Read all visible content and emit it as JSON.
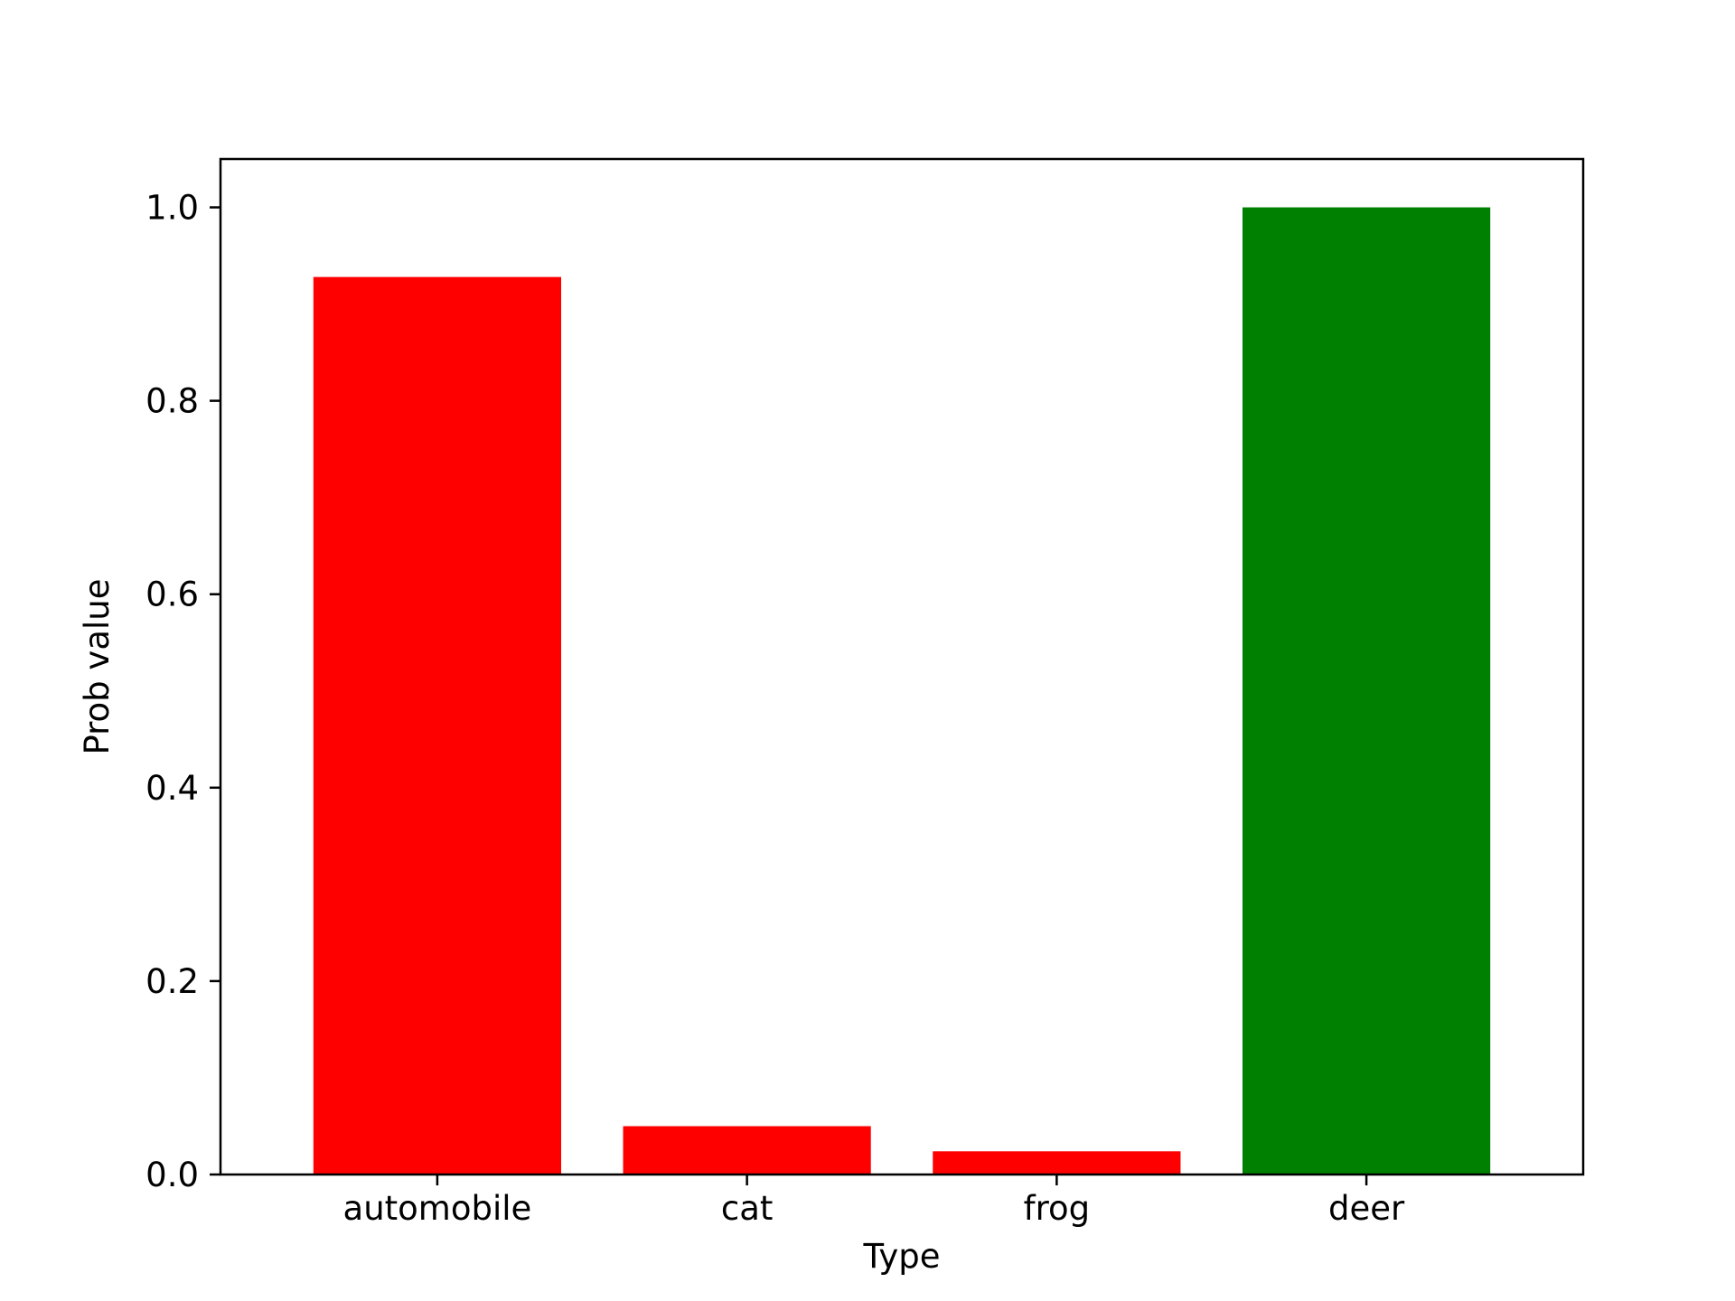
{
  "chart_data": {
    "type": "bar",
    "title": "",
    "xlabel": "Type",
    "ylabel": "Prob value",
    "categories": [
      "automobile",
      "cat",
      "frog",
      "deer"
    ],
    "values": [
      0.928,
      0.05,
      0.024,
      1.0
    ],
    "bar_colors": [
      "#ff0000",
      "#ff0000",
      "#ff0000",
      "#008000"
    ],
    "ylim": [
      0,
      1.05
    ],
    "yticks": [
      0.0,
      0.2,
      0.4,
      0.6,
      0.8,
      1.0
    ],
    "ytick_labels": [
      "0.0",
      "0.2",
      "0.4",
      "0.6",
      "0.8",
      "1.0"
    ],
    "grid": false,
    "legend": "none"
  }
}
